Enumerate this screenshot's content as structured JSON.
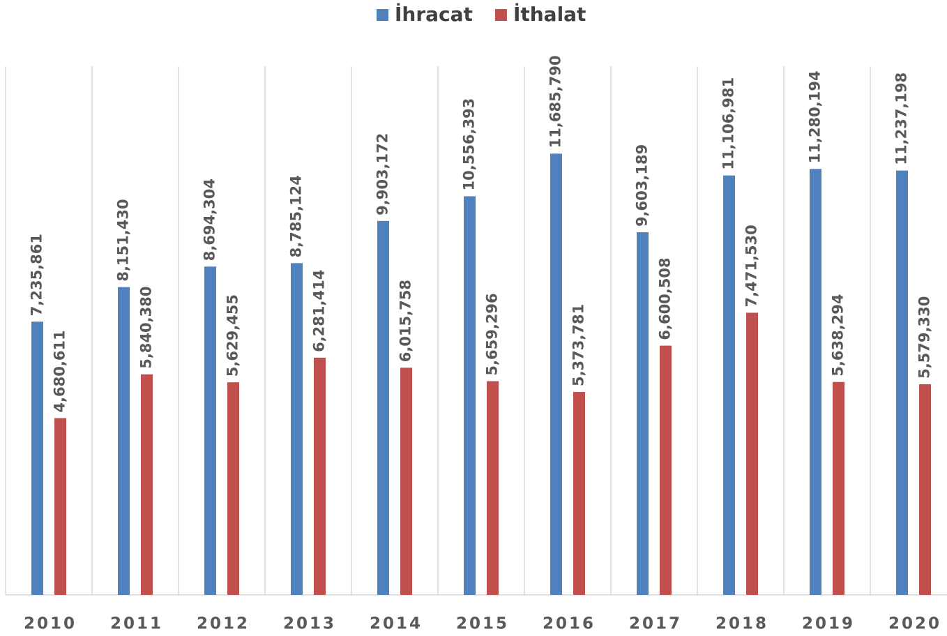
{
  "chart_data": {
    "type": "bar",
    "categories": [
      "2010",
      "2011",
      "2012",
      "2013",
      "2014",
      "2015",
      "2016",
      "2017",
      "2018",
      "2019",
      "2020"
    ],
    "series": [
      {
        "name": "İhracat",
        "color": "#4f81bd",
        "values": [
          7235861,
          8151430,
          8694304,
          8785124,
          9903172,
          10556393,
          11685790,
          9603189,
          11106981,
          11280194,
          11237198
        ],
        "value_labels": [
          "7,235,861",
          "8,151,430",
          "8,694,304",
          "8,785,124",
          "9,903,172",
          "10,556,393",
          "11,685,790",
          "9,603,189",
          "11,106,981",
          "11,280,194",
          "11,237,198"
        ]
      },
      {
        "name": "İthalat",
        "color": "#c0504d",
        "values": [
          4680611,
          5840380,
          5629455,
          6281414,
          6015758,
          5659296,
          5373781,
          6600508,
          7471530,
          5638294,
          5579330
        ],
        "value_labels": [
          "4,680,611",
          "5,840,380",
          "5,629,455",
          "6,281,414",
          "6,015,758",
          "5,659,296",
          "5,373,781",
          "6,600,508",
          "7,471,530",
          "5,638,294",
          "5,579,330"
        ]
      }
    ],
    "ylim": [
      0,
      14000000
    ],
    "legend": "top"
  }
}
